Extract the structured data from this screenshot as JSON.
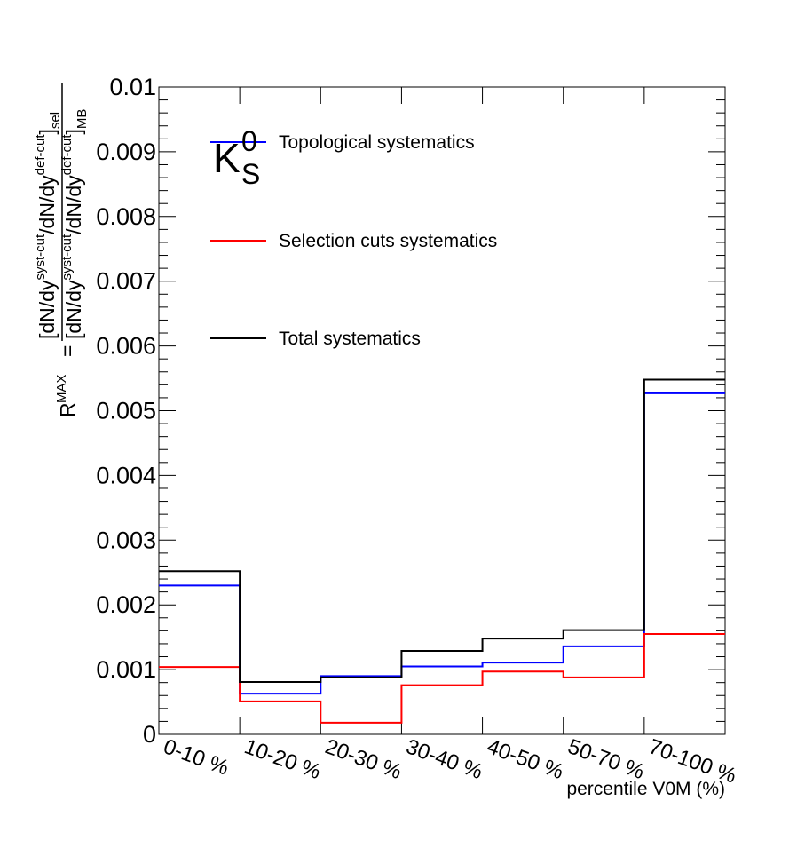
{
  "chart_data": {
    "type": "line",
    "step": true,
    "categories": [
      "0-10 %",
      "10-20 %",
      "20-30 %",
      "30-40 %",
      "40-50 %",
      "50-70 %",
      "70-100 %"
    ],
    "xlabel": "percentile V0M (%)",
    "ylabel": {
      "lhs": "R",
      "lhs_sup": "MAX",
      "eq": "=",
      "num": "[dN/dy",
      "num_sup1": "syst-cut",
      "num_mid": "/dN/dy",
      "num_sup2": "def-cut",
      "num_close": "]",
      "num_sub": "sel",
      "den": "[dN/dy",
      "den_sup1": "syst-cut",
      "den_mid": "/dN/dy",
      "den_sup2": "def-cut",
      "den_close": "]",
      "den_sub": "MB"
    },
    "particle": {
      "base": "K",
      "sup": "0",
      "sub": "S"
    },
    "ylim": [
      0,
      0.01
    ],
    "yticks": [
      "0",
      "0.001",
      "0.002",
      "0.003",
      "0.004",
      "0.005",
      "0.006",
      "0.007",
      "0.008",
      "0.009",
      "0.01"
    ],
    "grid": false,
    "legend_position": "top-left",
    "series": [
      {
        "name": "Topological systematics",
        "color": "#0000ff",
        "values": [
          0.0023,
          0.00063,
          0.0009,
          0.00105,
          0.00111,
          0.00136,
          0.00527
        ]
      },
      {
        "name": "Selection cuts systematics",
        "color": "#ff0000",
        "values": [
          0.00104,
          0.00051,
          0.00018,
          0.00076,
          0.00097,
          0.00088,
          0.00155
        ]
      },
      {
        "name": "Total systematics",
        "color": "#000000",
        "values": [
          0.00252,
          0.00081,
          0.00088,
          0.00129,
          0.00148,
          0.00161,
          0.00548
        ]
      }
    ]
  }
}
